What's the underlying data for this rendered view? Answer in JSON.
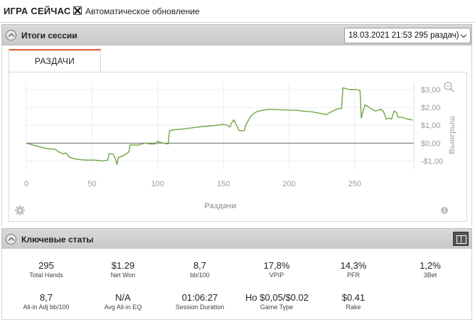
{
  "topbar": {
    "title": "ИГРА СЕЙЧАС",
    "auto_refresh_label": "Автоматическое обновление",
    "auto_refresh_checked": true
  },
  "session_results": {
    "header": "Итоги сессии",
    "session_select_value": "18.03.2021 21:53 295 раздач)",
    "tabs": [
      {
        "label": "РАЗДАЧИ",
        "active": true
      }
    ]
  },
  "chart_data": {
    "type": "line",
    "xlabel": "Раздачи",
    "ylabel": "Выигрыш",
    "xlim": [
      0,
      295
    ],
    "ylim": [
      -1.5,
      3.4
    ],
    "x_ticks": [
      0,
      50,
      100,
      150,
      200,
      250
    ],
    "y_ticks": [
      -1,
      0,
      1,
      2,
      3
    ],
    "y_tick_labels": [
      "-$1,00",
      "$0,00",
      "$1,00",
      "$2,00",
      "$3,00"
    ],
    "zero_line": true,
    "series": [
      {
        "color": "#6ea642",
        "points": [
          [
            0,
            0.0
          ],
          [
            5,
            -0.1
          ],
          [
            10,
            -0.2
          ],
          [
            15,
            -0.3
          ],
          [
            22,
            -0.35
          ],
          [
            25,
            -0.5
          ],
          [
            28,
            -0.6
          ],
          [
            30,
            -0.55
          ],
          [
            33,
            -0.8
          ],
          [
            38,
            -0.9
          ],
          [
            45,
            -0.95
          ],
          [
            52,
            -0.95
          ],
          [
            58,
            -1.0
          ],
          [
            62,
            -0.95
          ],
          [
            63,
            -0.6
          ],
          [
            66,
            -0.6
          ],
          [
            68,
            -0.9
          ],
          [
            69,
            -1.2
          ],
          [
            70,
            -0.8
          ],
          [
            74,
            -0.7
          ],
          [
            78,
            -0.5
          ],
          [
            79,
            -0.1
          ],
          [
            82,
            -0.1
          ],
          [
            86,
            -0.1
          ],
          [
            90,
            0.0
          ],
          [
            95,
            -0.05
          ],
          [
            98,
            -0.05
          ],
          [
            100,
            0.1
          ],
          [
            104,
            0.0
          ],
          [
            108,
            -0.05
          ],
          [
            109,
            0.7
          ],
          [
            113,
            0.75
          ],
          [
            120,
            0.8
          ],
          [
            130,
            0.9
          ],
          [
            138,
            0.95
          ],
          [
            145,
            1.0
          ],
          [
            150,
            1.05
          ],
          [
            153,
            1.0
          ],
          [
            155,
            0.9
          ],
          [
            156,
            1.1
          ],
          [
            158,
            1.3
          ],
          [
            160,
            1.0
          ],
          [
            162,
            0.7
          ],
          [
            166,
            0.7
          ],
          [
            167,
            1.0
          ],
          [
            170,
            1.4
          ],
          [
            172,
            1.6
          ],
          [
            175,
            1.75
          ],
          [
            180,
            1.85
          ],
          [
            185,
            1.9
          ],
          [
            200,
            1.85
          ],
          [
            205,
            1.85
          ],
          [
            210,
            1.8
          ],
          [
            218,
            1.75
          ],
          [
            225,
            1.65
          ],
          [
            228,
            1.6
          ],
          [
            236,
            1.9
          ],
          [
            240,
            1.95
          ],
          [
            241,
            3.1
          ],
          [
            246,
            3.0
          ],
          [
            251,
            3.0
          ],
          [
            254,
            2.95
          ],
          [
            255,
            1.4
          ],
          [
            256,
            1.7
          ],
          [
            258,
            2.15
          ],
          [
            263,
            1.9
          ],
          [
            266,
            1.8
          ],
          [
            270,
            1.9
          ],
          [
            272,
            1.75
          ],
          [
            274,
            1.35
          ],
          [
            276,
            1.4
          ],
          [
            278,
            1.35
          ],
          [
            280,
            1.8
          ],
          [
            282,
            1.7
          ],
          [
            283,
            1.45
          ],
          [
            286,
            1.45
          ],
          [
            290,
            1.35
          ],
          [
            294,
            1.3
          ]
        ]
      }
    ]
  },
  "key_stats": {
    "header": "Ключевые статы",
    "items": [
      {
        "value": "295",
        "label": "Total Hands"
      },
      {
        "value": "$1.29",
        "label": "Net Won"
      },
      {
        "value": "8,7",
        "label": "bb/100"
      },
      {
        "value": "17,8%",
        "label": "VPIP"
      },
      {
        "value": "14,3%",
        "label": "PFR"
      },
      {
        "value": "1,2%",
        "label": "3Bet"
      },
      {
        "value": "8,7",
        "label": "All-in Adj bb/100"
      },
      {
        "value": "N/A",
        "label": "Avg All-in EQ"
      },
      {
        "value": "01:06:27",
        "label": "Session Duration"
      },
      {
        "value": "$0.02/$0,05 NL Ho",
        "label": "Game Type"
      },
      {
        "value": "$0.41",
        "label": "Rake"
      }
    ]
  }
}
